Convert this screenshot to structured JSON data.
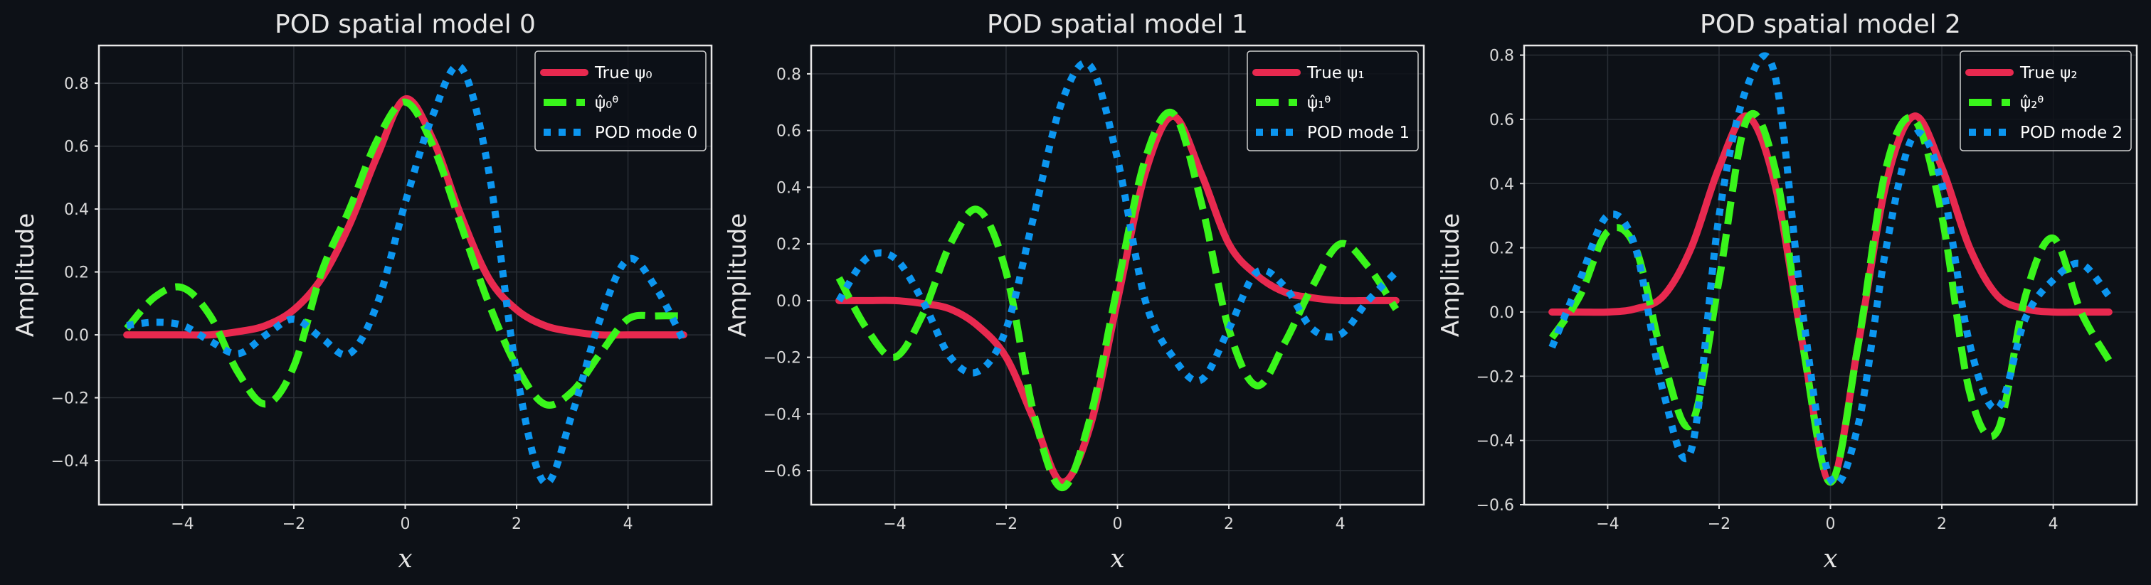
{
  "colors": {
    "background": "#0d1117",
    "true": "#e8294f",
    "approx": "#39f51b",
    "pod": "#0c96f0",
    "frame": "#e8e8e8",
    "grid": "#2a2f36"
  },
  "chart_data": [
    {
      "type": "line",
      "title": "POD spatial model 0",
      "xlabel": "x",
      "ylabel": "Amplitude",
      "xlim": [
        -5.5,
        5.5
      ],
      "ylim": [
        -0.54,
        0.92
      ],
      "xticks": [
        -4,
        -2,
        0,
        2,
        4
      ],
      "xtick_labels": [
        "−4",
        "−2",
        "0",
        "2",
        "4"
      ],
      "yticks": [
        -0.4,
        -0.2,
        0.0,
        0.2,
        0.4,
        0.6,
        0.8
      ],
      "ytick_labels": [
        "−0.4",
        "−0.2",
        "0.0",
        "0.2",
        "0.4",
        "0.6",
        "0.8"
      ],
      "grid": true,
      "legend_position": "top-right",
      "series": [
        {
          "name": "True ψ0",
          "style": "solid",
          "x": [
            -5,
            -4.5,
            -4,
            -3.5,
            -3,
            -2.5,
            -2,
            -1.5,
            -1,
            -0.5,
            0,
            0.5,
            1,
            1.5,
            2,
            2.5,
            3,
            3.5,
            4,
            4.5,
            5
          ],
          "y": [
            0,
            0,
            0,
            0,
            0.01,
            0.03,
            0.08,
            0.18,
            0.35,
            0.57,
            0.75,
            0.62,
            0.38,
            0.18,
            0.08,
            0.03,
            0.01,
            0,
            0,
            0,
            0
          ]
        },
        {
          "name": "ψ̂0θ",
          "style": "dashed",
          "x": [
            -5,
            -4.5,
            -4,
            -3.5,
            -3,
            -2.5,
            -2,
            -1.5,
            -1,
            -0.5,
            0,
            0.5,
            1,
            1.5,
            2,
            2.5,
            3,
            3.5,
            4,
            4.5,
            5
          ],
          "y": [
            0.02,
            0.12,
            0.15,
            0.06,
            -0.12,
            -0.22,
            -0.1,
            0.2,
            0.4,
            0.62,
            0.74,
            0.6,
            0.35,
            0.1,
            -0.1,
            -0.22,
            -0.18,
            -0.06,
            0.05,
            0.06,
            0.06
          ]
        },
        {
          "name": "POD mode 0",
          "style": "dotted",
          "x": [
            -5,
            -4.5,
            -4,
            -3.5,
            -3,
            -2.5,
            -2,
            -1.5,
            -1,
            -0.5,
            0,
            0.5,
            1,
            1.5,
            2,
            2.5,
            3,
            3.5,
            4,
            4.5,
            5
          ],
          "y": [
            0.03,
            0.04,
            0.03,
            -0.02,
            -0.06,
            0.0,
            0.05,
            -0.01,
            -0.06,
            0.1,
            0.42,
            0.7,
            0.85,
            0.52,
            -0.12,
            -0.47,
            -0.25,
            0.05,
            0.24,
            0.15,
            -0.02
          ]
        }
      ],
      "legend_labels": [
        "True ψ₀",
        "ψ̂₀ᶿ",
        "POD mode 0"
      ]
    },
    {
      "type": "line",
      "title": "POD spatial model 1",
      "xlabel": "x",
      "ylabel": "Amplitude",
      "xlim": [
        -5.5,
        5.5
      ],
      "ylim": [
        -0.72,
        0.9
      ],
      "xticks": [
        -4,
        -2,
        0,
        2,
        4
      ],
      "xtick_labels": [
        "−4",
        "−2",
        "0",
        "2",
        "4"
      ],
      "yticks": [
        -0.6,
        -0.4,
        -0.2,
        0.0,
        0.2,
        0.4,
        0.6,
        0.8
      ],
      "ytick_labels": [
        "−0.6",
        "−0.4",
        "−0.2",
        "0.0",
        "0.2",
        "0.4",
        "0.6",
        "0.8"
      ],
      "grid": true,
      "legend_position": "top-right",
      "series": [
        {
          "name": "True ψ1",
          "style": "solid",
          "x": [
            -5,
            -4.5,
            -4,
            -3.5,
            -3,
            -2.5,
            -2,
            -1.5,
            -1,
            -0.5,
            0,
            0.5,
            1,
            1.5,
            2,
            2.5,
            3,
            3.5,
            4,
            4.5,
            5
          ],
          "y": [
            0,
            0,
            0,
            -0.01,
            -0.03,
            -0.09,
            -0.2,
            -0.42,
            -0.64,
            -0.45,
            0.0,
            0.45,
            0.65,
            0.45,
            0.2,
            0.09,
            0.03,
            0.01,
            0,
            0,
            0
          ]
        },
        {
          "name": "ψ̂1θ",
          "style": "dashed",
          "x": [
            -5,
            -4.5,
            -4,
            -3.5,
            -3,
            -2.5,
            -2,
            -1.5,
            -1,
            -0.5,
            0,
            0.5,
            1,
            1.5,
            2,
            2.5,
            3,
            3.5,
            4,
            4.5,
            5
          ],
          "y": [
            0.08,
            -0.1,
            -0.2,
            -0.05,
            0.2,
            0.32,
            0.1,
            -0.4,
            -0.66,
            -0.42,
            0.05,
            0.5,
            0.66,
            0.35,
            -0.1,
            -0.3,
            -0.15,
            0.05,
            0.2,
            0.12,
            -0.03
          ]
        },
        {
          "name": "POD mode 1",
          "style": "dotted",
          "x": [
            -5,
            -4.5,
            -4,
            -3.5,
            -3,
            -2.5,
            -2,
            -1.5,
            -1,
            -0.5,
            0,
            0.5,
            1,
            1.5,
            2,
            2.5,
            3,
            3.5,
            4,
            4.5,
            5
          ],
          "y": [
            0.0,
            0.15,
            0.15,
            0.0,
            -0.2,
            -0.25,
            -0.1,
            0.3,
            0.7,
            0.83,
            0.5,
            0.0,
            -0.2,
            -0.28,
            -0.1,
            0.1,
            0.05,
            -0.1,
            -0.12,
            0.0,
            0.1
          ]
        }
      ],
      "legend_labels": [
        "True ψ₁",
        "ψ̂₁ᶿ",
        "POD mode 1"
      ]
    },
    {
      "type": "line",
      "title": "POD spatial model 2",
      "xlabel": "x",
      "ylabel": "Amplitude",
      "xlim": [
        -5.5,
        5.5
      ],
      "ylim": [
        -0.6,
        0.83
      ],
      "xticks": [
        -4,
        -2,
        0,
        2,
        4
      ],
      "xtick_labels": [
        "−4",
        "−2",
        "0",
        "2",
        "4"
      ],
      "yticks": [
        -0.6,
        -0.4,
        -0.2,
        0.0,
        0.2,
        0.4,
        0.6,
        0.8
      ],
      "ytick_labels": [
        "−0.6",
        "−0.4",
        "−0.2",
        "0.0",
        "0.2",
        "0.4",
        "0.6",
        "0.8"
      ],
      "grid": true,
      "legend_position": "top-right",
      "series": [
        {
          "name": "True ψ2",
          "style": "solid",
          "x": [
            -5,
            -4.5,
            -4,
            -3.5,
            -3,
            -2.5,
            -2,
            -1.5,
            -1,
            -0.5,
            0,
            0.5,
            1,
            1.5,
            2,
            2.5,
            3,
            3.5,
            4,
            4.5,
            5
          ],
          "y": [
            0,
            0,
            0,
            0.01,
            0.05,
            0.2,
            0.45,
            0.61,
            0.4,
            -0.1,
            -0.53,
            -0.1,
            0.4,
            0.61,
            0.45,
            0.2,
            0.05,
            0.01,
            0,
            0,
            0
          ]
        },
        {
          "name": "ψ̂2θ",
          "style": "dashed",
          "x": [
            -5,
            -4.5,
            -4,
            -3.5,
            -3,
            -2.5,
            -2,
            -1.5,
            -1,
            -0.5,
            0,
            0.5,
            1,
            1.5,
            2,
            2.5,
            3,
            3.5,
            4,
            4.5,
            5
          ],
          "y": [
            -0.08,
            0.05,
            0.25,
            0.2,
            -0.15,
            -0.35,
            0.1,
            0.6,
            0.45,
            -0.1,
            -0.53,
            -0.1,
            0.45,
            0.6,
            0.3,
            -0.25,
            -0.37,
            0.05,
            0.23,
            0.0,
            -0.15
          ]
        },
        {
          "name": "POD mode 2",
          "style": "dotted",
          "x": [
            -5,
            -4.5,
            -4,
            -3.5,
            -3,
            -2.5,
            -2,
            -1.5,
            -1,
            -0.5,
            0,
            0.5,
            1,
            1.5,
            2,
            2.5,
            3,
            3.5,
            4,
            4.5,
            5
          ],
          "y": [
            -0.11,
            0.1,
            0.3,
            0.2,
            -0.25,
            -0.43,
            0.3,
            0.7,
            0.74,
            0.0,
            -0.52,
            -0.35,
            0.2,
            0.55,
            0.4,
            -0.1,
            -0.3,
            -0.02,
            0.1,
            0.15,
            0.05
          ]
        }
      ],
      "legend_labels": [
        "True ψ₂",
        "ψ̂₂ᶿ",
        "POD mode 2"
      ]
    }
  ]
}
